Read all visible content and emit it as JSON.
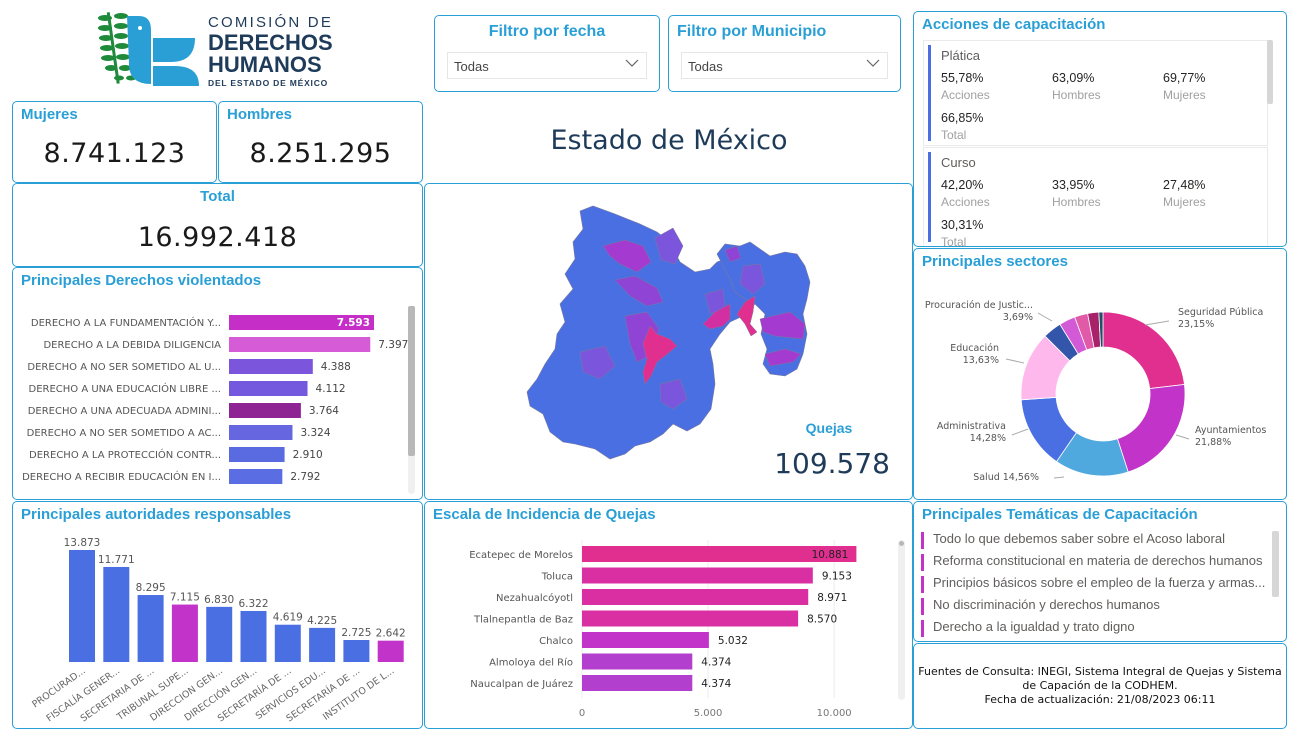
{
  "logo": {
    "line1": "COMISIÓN DE",
    "line2": "DERECHOS",
    "line3": "HUMANOS",
    "line4": "DEL ESTADO DE MÉXICO"
  },
  "kpis": {
    "mujeres": {
      "label": "Mujeres",
      "value": "8.741.123"
    },
    "hombres": {
      "label": "Hombres",
      "value": "8.251.295"
    },
    "total": {
      "label": "Total",
      "value": "16.992.418"
    }
  },
  "filters": {
    "fecha": {
      "title": "Filtro por fecha",
      "selected": "Todas"
    },
    "municipio": {
      "title": "Filtro por Municipio",
      "selected": "Todas"
    }
  },
  "map": {
    "title": "Estado de México",
    "quejas_label": "Quejas",
    "quejas_value": "109.578"
  },
  "acciones": {
    "title": "Acciones de capacitación",
    "blocks": [
      {
        "name": "Plática",
        "acciones": "55,78%",
        "hombres": "63,09%",
        "mujeres": "69,77%",
        "total": "66,85%"
      },
      {
        "name": "Curso",
        "acciones": "42,20%",
        "hombres": "33,95%",
        "mujeres": "27,48%",
        "total": "30,31%"
      }
    ],
    "labels": {
      "acciones": "Acciones",
      "hombres": "Hombres",
      "mujeres": "Mujeres",
      "total": "Total"
    }
  },
  "colors": {
    "accent": "#2a9fd6",
    "blue": "#4a6fe3",
    "magenta": "#c133c9",
    "pink": "#e02f8f"
  },
  "chart_data": [
    {
      "id": "derechos",
      "type": "bar",
      "orientation": "horizontal",
      "title": "Principales Derechos violentados",
      "categories": [
        "DERECHO A LA FUNDAMENTACIÓN Y...",
        "DERECHO A LA DEBIDA DILIGENCIA",
        "DERECHO A NO SER SOMETIDO AL U...",
        "DERECHO A UNA EDUCACIÓN LIBRE ...",
        "DERECHO A UNA ADECUADA ADMINI...",
        "DERECHO A NO SER SOMETIDO A AC...",
        "DERECHO A LA PROTECCIÓN CONTR...",
        "DERECHO A RECIBIR EDUCACIÓN EN I..."
      ],
      "values": [
        7593,
        7397,
        4388,
        4112,
        3764,
        3324,
        2910,
        2792
      ],
      "value_labels": [
        "7.593",
        "7.397",
        "4.388",
        "4.112",
        "3.764",
        "3.324",
        "2.910",
        "2.792"
      ],
      "colors": [
        "#c52fc8",
        "#d65bd6",
        "#7b55dc",
        "#7458de",
        "#8e2494",
        "#6566e0",
        "#5a6be2",
        "#5a6de3"
      ]
    },
    {
      "id": "autoridades",
      "type": "bar",
      "orientation": "vertical",
      "title": "Principales autoridades responsables",
      "categories": [
        "PROCURAD...",
        "FISCALÍA GENER...",
        "SECRETARIA DE ...",
        "TRIBUNAL SUPE...",
        "DIRECCION GEN...",
        "DIRECCIÓN GEN...",
        "SECRETARÍA DE ...",
        "SERVICIOS EDU...",
        "SECRETARÍA DE ...",
        "INSTITUTO DE L..."
      ],
      "values": [
        13873,
        11771,
        8295,
        7115,
        6830,
        6322,
        4619,
        4225,
        2725,
        2642
      ],
      "value_labels": [
        "13.873",
        "11.771",
        "8.295",
        "7.115",
        "6.830",
        "6.322",
        "4.619",
        "4.225",
        "2.725",
        "2.642"
      ],
      "colors": [
        "#4a6fe3",
        "#4a6fe3",
        "#4a6fe3",
        "#c133c9",
        "#4a6fe3",
        "#4a6fe3",
        "#4a6fe3",
        "#4a6fe3",
        "#4a6fe3",
        "#c133c9"
      ]
    },
    {
      "id": "incidencia",
      "type": "bar",
      "orientation": "horizontal",
      "title": "Escala de Incidencia de Quejas",
      "categories": [
        "Ecatepec de Morelos",
        "Toluca",
        "Nezahualcóyotl",
        "Tlalnepantla de Baz",
        "Chalco",
        "Almoloya del Río",
        "Naucalpan de Juárez"
      ],
      "values": [
        10881,
        9153,
        8971,
        8570,
        5032,
        4374,
        4374
      ],
      "value_labels": [
        "10.881",
        "9.153",
        "8.971",
        "8.570",
        "5.032",
        "4.374",
        "4.374"
      ],
      "colors": [
        "#e02f8f",
        "#d92fa3",
        "#d92fa3",
        "#d92fa3",
        "#c133c9",
        "#b33fce",
        "#b33fce"
      ],
      "xlim": [
        0,
        11500
      ],
      "xticks": [
        0,
        5000,
        10000
      ],
      "xtick_labels": [
        "0",
        "5.000",
        "10.000"
      ],
      "grid": true
    },
    {
      "id": "sectores",
      "type": "pie",
      "donut": true,
      "title": "Principales sectores",
      "slices": [
        {
          "name": "Seguridad Pública",
          "value": 23.15,
          "label": "Seguridad Pública\n23,15%",
          "color": "#e02f8f"
        },
        {
          "name": "Ayuntamientos",
          "value": 21.88,
          "label": "Ayuntamientos\n21,88%",
          "color": "#c133c9"
        },
        {
          "name": "Salud",
          "value": 14.56,
          "label": "Salud 14,56%",
          "color": "#4fa8de"
        },
        {
          "name": "Administrativa",
          "value": 14.28,
          "label": "Administrativa\n14,28%",
          "color": "#4a6fe3"
        },
        {
          "name": "Educación",
          "value": 13.63,
          "label": "Educación\n13,63%",
          "color": "#ffb8ec"
        },
        {
          "name": "Procuración de Justic...",
          "value": 3.69,
          "label": "Procuración de Justic...\n3,69%",
          "color": "#3355aa"
        },
        {
          "name": "Otro 1",
          "value": 3.2,
          "label": "",
          "color": "#d35ad6"
        },
        {
          "name": "Otro 2",
          "value": 2.6,
          "label": "",
          "color": "#e15aa8"
        },
        {
          "name": "Otro 3",
          "value": 2.2,
          "label": "",
          "color": "#a8226a"
        },
        {
          "name": "Otro 4",
          "value": 0.81,
          "label": "",
          "color": "#1f4f6a"
        }
      ]
    }
  ],
  "tematicas": {
    "title": "Principales Temáticas de Capacitación",
    "items": [
      "Todo lo que debemos saber sobre el Acoso laboral",
      "Reforma constitucional en materia de derechos humanos",
      "Principios básicos sobre el empleo de la fuerza y armas...",
      "No discriminación y derechos humanos",
      "Derecho a la igualdad y trato digno"
    ]
  },
  "footer": {
    "line1": "Fuentes de Consulta: INEGI, Sistema Integral de Quejas y Sistema",
    "line2": "de Capación de la CODHEM.",
    "line3": "Fecha de actualización: 21/08/2023 06:11"
  }
}
